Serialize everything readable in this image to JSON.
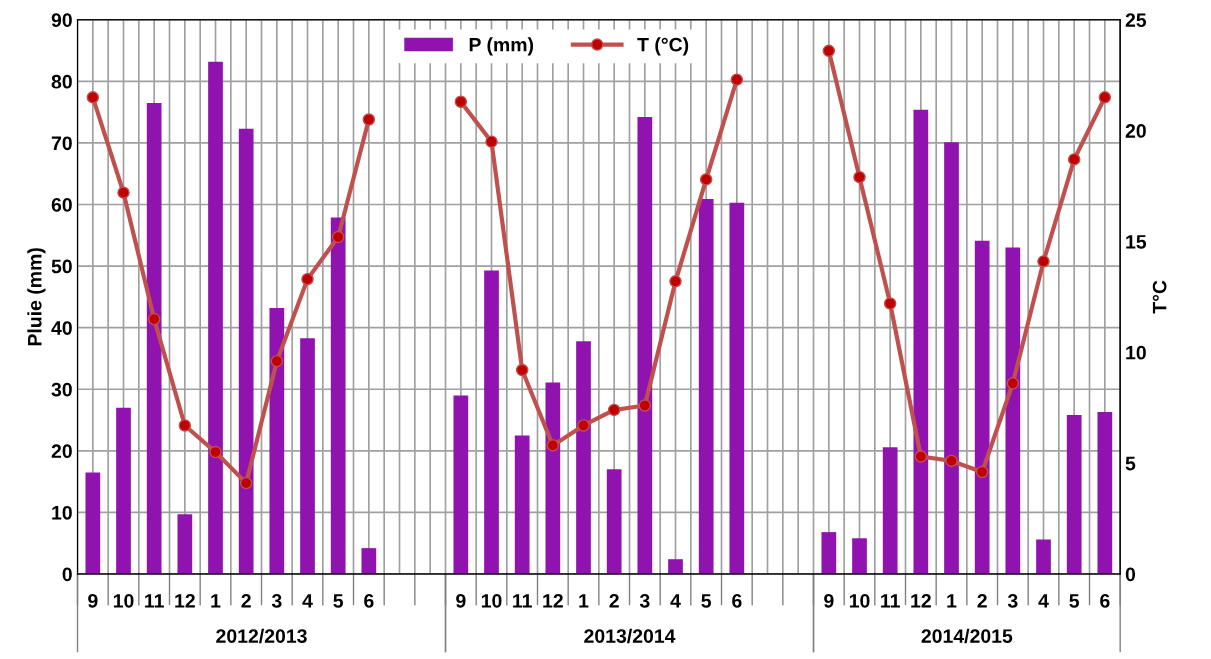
{
  "chart_data": {
    "type": "bar",
    "categories": [
      "9",
      "10",
      "11",
      "12",
      "1",
      "2",
      "3",
      "4",
      "5",
      "6",
      null,
      null,
      "9",
      "10",
      "11",
      "12",
      "1",
      "2",
      "3",
      "4",
      "5",
      "6",
      null,
      null,
      "9",
      "10",
      "11",
      "12",
      "1",
      "2",
      "3",
      "4",
      "5",
      "6"
    ],
    "series": [
      {
        "name": "P (mm)",
        "color": "#9013b0",
        "values": [
          16.5,
          27,
          76.5,
          9.7,
          83.2,
          72.3,
          43.2,
          38.3,
          57.9,
          4.2,
          null,
          null,
          29,
          49.3,
          22.5,
          31.1,
          37.8,
          17,
          74.2,
          2.4,
          60.9,
          60.3,
          null,
          null,
          6.8,
          5.8,
          20.6,
          75.4,
          70.1,
          54.1,
          53.0,
          5.6,
          25.8,
          26.3
        ]
      },
      {
        "name": "T (°C)",
        "type": "line",
        "axis": "y2",
        "color": "#c0504d",
        "marker": "circle",
        "values": [
          21.5,
          17.2,
          11.5,
          6.7,
          5.5,
          4.1,
          9.6,
          13.3,
          15.2,
          20.5,
          null,
          null,
          21.3,
          19.5,
          9.2,
          5.8,
          6.7,
          7.4,
          7.6,
          13.2,
          17.8,
          22.3,
          null,
          null,
          23.6,
          17.9,
          12.2,
          5.3,
          5.1,
          4.6,
          8.6,
          14.1,
          18.7,
          21.5
        ]
      }
    ],
    "ylabel": "Pluie (mm)",
    "y2label": "T°C",
    "ylim": [
      0,
      90
    ],
    "yticks": [
      0,
      10,
      20,
      30,
      40,
      50,
      60,
      70,
      80,
      90
    ],
    "y2lim": [
      0,
      25
    ],
    "y2ticks": [
      0,
      5,
      10,
      15,
      20,
      25
    ],
    "annotations": [
      "2012/2013",
      "2013/2014",
      "2014/2015"
    ],
    "grid": true,
    "legend": "top"
  }
}
